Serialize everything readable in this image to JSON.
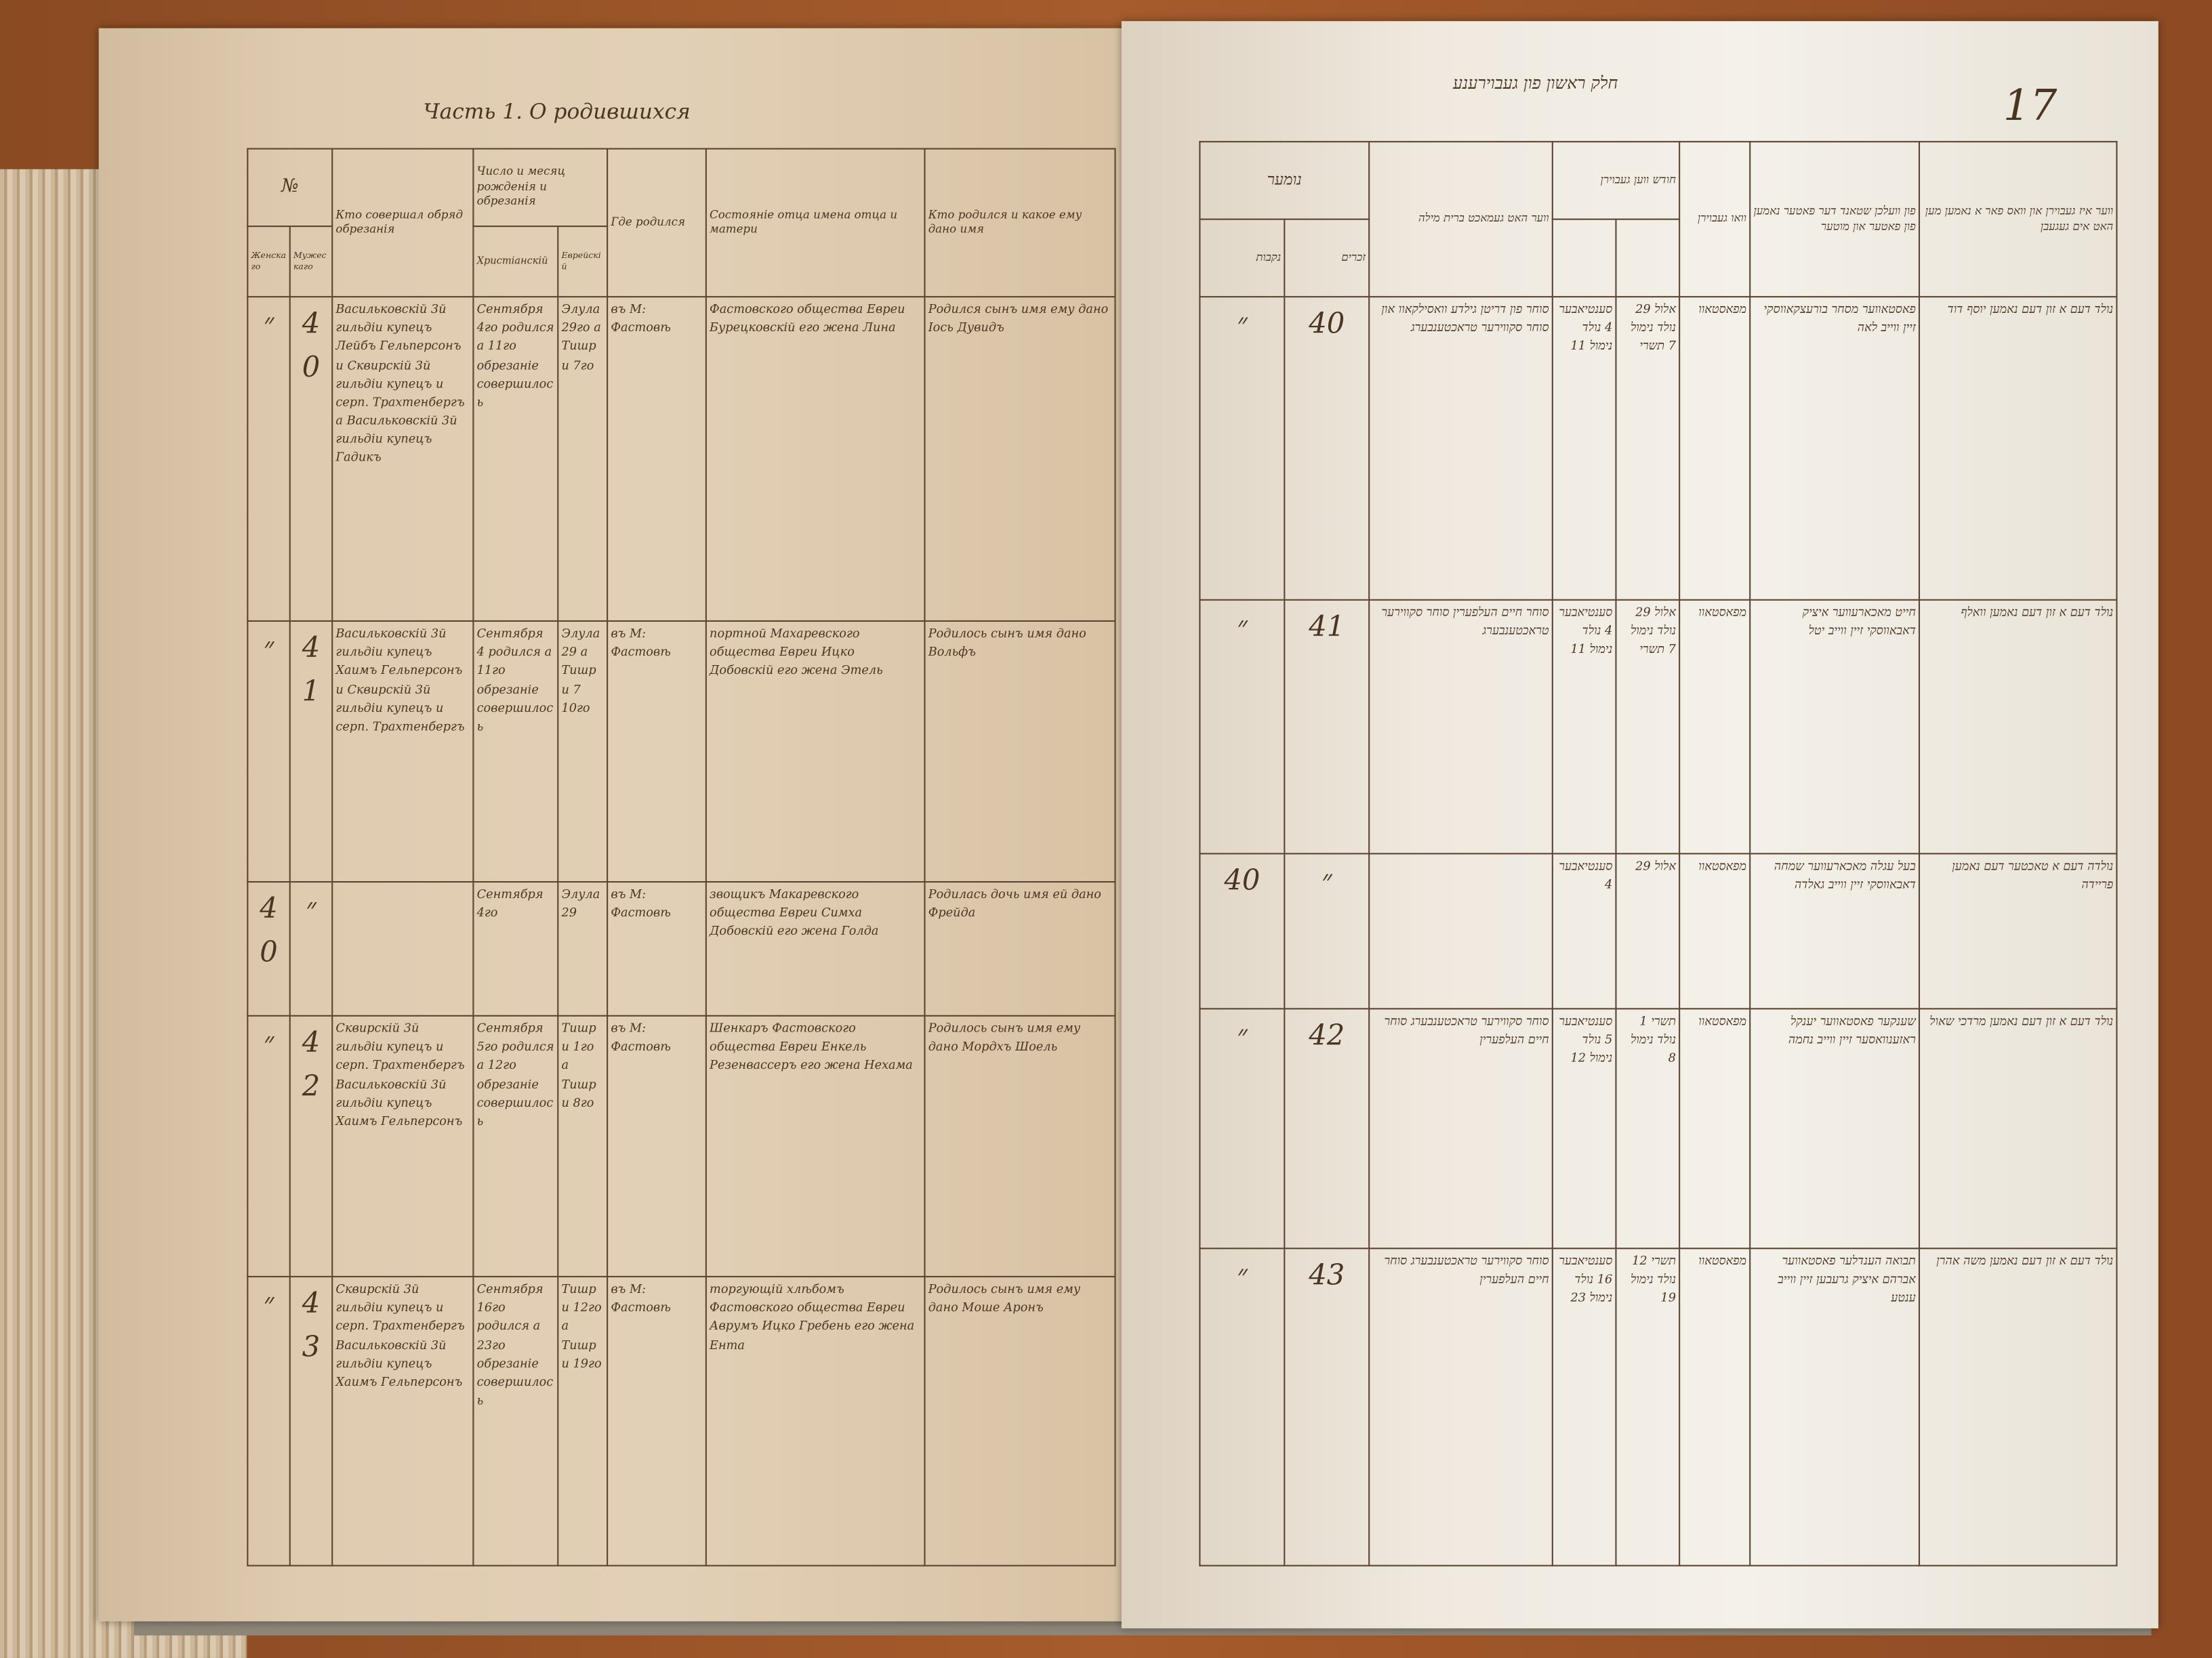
{
  "left_page": {
    "title": "Часть 1. О родившихся",
    "headers": {
      "number": "№",
      "number_female": "Женскаго",
      "number_male": "Мужескаго",
      "performer": "Кто совершал обряд обрезанія",
      "date": "Число и месяц рожденія и обрезанія",
      "date_christian": "Христіанскій",
      "date_jewish": "Еврейскій",
      "place": "Где родился",
      "parents": "Состояніе отца имена отца и матери",
      "child": "Кто родился и какое ему дано имя"
    },
    "rows": [
      {
        "female": "״",
        "male": "40",
        "performer": "Васильковскій 3й гильдіи купецъ Лейбъ Гельперсонъ и Сквирскій 3й гильдіи купецъ и серп. Трахтенбергъ а Васильковскій 3й гильдіи купецъ Гадикъ",
        "date_christian": "Сентября 4го родился а 11го обрезаніе совершилось",
        "date_jewish": "Элула 29го а Тишри 7го",
        "place": "въ М: Фастовѣ",
        "parents": "Фастовского общества Евреи Бурецковскій его жена Лина",
        "child": "Родился сынъ имя ему дано Іось Дувидъ"
      },
      {
        "female": "״",
        "male": "41",
        "performer": "Васильковскій 3й гильдіи купецъ Хаимъ Гельперсонъ и Сквирскій 3й гильдіи купецъ и серп. Трахтенбергъ",
        "date_christian": "Сентября 4 родился а 11го обрезаніе совершилось",
        "date_jewish": "Элула 29 а Тишри 7 10го",
        "place": "въ М: Фастовѣ",
        "parents": "портной Махаревского общества Евреи Ицко Добовскій его жена Этель",
        "child": "Родилось сынъ имя дано Вольфъ"
      },
      {
        "female": "40",
        "male": "״",
        "performer": "",
        "date_christian": "Сентября 4го",
        "date_jewish": "Элула 29",
        "place": "въ М: Фастовѣ",
        "parents": "звощикъ Макаревского общества Евреи Симха Добовскій его жена Голда",
        "child": "Родилась дочь имя ей дано Фрейда"
      },
      {
        "female": "״",
        "male": "42",
        "performer": "Сквирскій 3й гильдіи купецъ и серп. Трахтенбергъ Васильковскій 3й гильдіи купецъ Хаимъ Гельперсонъ",
        "date_christian": "Сентября 5го родился а 12го обрезаніе совершилось",
        "date_jewish": "Тишри 1го а Тишри 8го",
        "place": "въ М: Фастовѣ",
        "parents": "Шенкаръ Фастовского общества Евреи Енкель Резенвассеръ его жена Нехама",
        "child": "Родилось сынъ имя ему дано Мордхъ Шоель"
      },
      {
        "female": "״",
        "male": "43",
        "performer": "Сквирскій 3й гильдіи купецъ и серп. Трахтенбергъ Васильковскій 3й гильдіи купецъ Хаимъ Гельперсонъ",
        "date_christian": "Сентября 16го родился а 23го обрезаніе совершилось",
        "date_jewish": "Тишри 12го а Тишри 19го",
        "place": "въ М: Фастовѣ",
        "parents": "торгующій хлѣбомъ Фастовского общества Евреи Аврумъ Ицко Гребень его жена Ента",
        "child": "Родилось сынъ имя ему дано Моше Аронъ"
      }
    ]
  },
  "right_page": {
    "title": "חלק ראשון פון געבוירענע",
    "page_number": "17",
    "headers": {
      "number": "נומער",
      "number_female": "נקבות",
      "number_male": "זכרים",
      "performer": "ווער האט געמאכט ברית מילה",
      "date": "חודש ווען געבוירן",
      "place": "וואו געבוירן",
      "parents": "פון וועלכן שטאנד דער פאטער נאמען פון פאטער און מוטער",
      "child": "ווער איז געבוירן און וואס פאר א נאמען מען האט אים געגעבן"
    },
    "rows": [
      {
        "female": "״",
        "male": "40",
        "performer": "סוחר פון דריטן גילדע וואסילקאוו און סוחר סקווירער טראכטענבערג",
        "date_christian": "סענטיאבער 4 נולד נימול 11",
        "date_jewish": "אלול 29 נולד נימול 7 תשרי",
        "place": "מפאסטאוו",
        "parents": "פאסטאווער מסחר בורעצקאווסקי זיין ווייב לאה",
        "child": "נולד דעם א זון דעם נאמען יוסף דוד"
      },
      {
        "female": "״",
        "male": "41",
        "performer": "סוחר חיים העלפערין סוחר סקווירער טראכטענבערג",
        "date_christian": "סענטיאבער 4 נולד נימול 11",
        "date_jewish": "אלול 29 נולד נימול 7 תשרי",
        "place": "מפאסטאוו",
        "parents": "חייט מאכארעווער איציק דאבאווסקי זיין ווייב יטל",
        "child": "נולד דעם א זון דעם נאמען וואלף"
      },
      {
        "female": "40",
        "male": "״",
        "performer": "",
        "date_christian": "סענטיאבער 4",
        "date_jewish": "אלול 29",
        "place": "מפאסטאוו",
        "parents": "בעל עגלה מאכארעווער שמחה דאבאווסקי זיין ווייב גאלדה",
        "child": "נולדה דעם א טאכטער דעם נאמען פריידה"
      },
      {
        "female": "״",
        "male": "42",
        "performer": "סוחר סקווירער טראכטענבערג סוחר חיים העלפערין",
        "date_christian": "סענטיאבער 5 נולד נימול 12",
        "date_jewish": "תשרי 1 נולד נימול 8",
        "place": "מפאסטאוו",
        "parents": "שענקער פאסטאווער יענקל ראזענוואסער זיין ווייב נחמה",
        "child": "נולד דעם א זון דעם נאמען מרדכי שאול"
      },
      {
        "female": "״",
        "male": "43",
        "performer": "סוחר סקווירער טראכטענבערג סוחר חיים העלפערין",
        "date_christian": "סענטיאבער 16 נולד נימול 23",
        "date_jewish": "תשרי 12 נולד נימול 19",
        "place": "מפאסטאוו",
        "parents": "תבואה הענדלער פאסטאווער אברהם איציק גרעבען זיין ווייב ענטע",
        "child": "נולד דעם א זון דעם נאמען משה אהרן"
      }
    ]
  },
  "colors": {
    "ink": "#4a3422",
    "table_background": "#9a5428",
    "left_page": "#dfcbb0",
    "right_page": "#f1ede5"
  }
}
